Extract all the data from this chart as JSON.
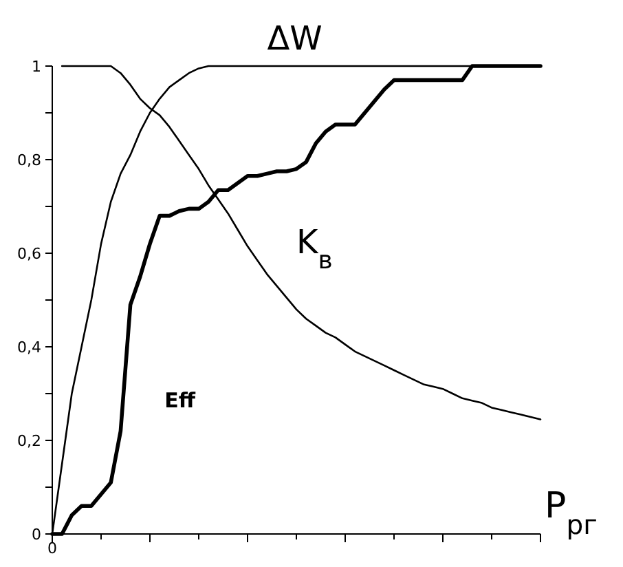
{
  "chart_data": {
    "type": "line",
    "xlabel": "P$_{рг}$",
    "categories": [
      "0",
      null,
      null,
      null,
      null,
      null,
      null,
      null,
      null,
      null,
      null,
      null,
      null,
      null,
      null,
      null,
      null,
      null,
      null,
      null,
      null,
      null,
      null,
      null,
      null,
      null,
      null,
      null,
      null,
      null,
      null,
      null,
      null,
      null,
      null,
      null,
      null,
      null,
      null,
      null,
      null,
      null,
      null,
      null,
      null,
      null,
      null,
      null,
      null,
      null,
      null
    ],
    "ylim": [
      0,
      1
    ],
    "yticks": [
      0,
      {
        "value": 0.1,
        "label": null
      },
      {
        "value": 0.2,
        "label": "0,2"
      },
      {
        "value": 0.3,
        "label": null
      },
      {
        "value": 0.4,
        "label": "0,4"
      },
      {
        "value": 0.5,
        "label": null
      },
      {
        "value": 0.6,
        "label": "0,6"
      },
      {
        "value": 0.7,
        "label": null
      },
      {
        "value": 0.8,
        "label": "0,8"
      },
      {
        "value": 0.9,
        "label": null
      },
      1
    ],
    "grid": false,
    "marker": "none",
    "line_style": "solid",
    "series": [
      {
        "name": "ΔW",
        "color": "#000000",
        "values": [
          0,
          0.15,
          0.3,
          0.4,
          0.5,
          0.62,
          0.71,
          0.77,
          0.81,
          0.86,
          0.9,
          0.93,
          0.955,
          0.97,
          0.985,
          0.995,
          1,
          1,
          1,
          1,
          1,
          1,
          1,
          1,
          1,
          1,
          1,
          1,
          1,
          1,
          1,
          1,
          1,
          1,
          1,
          1,
          1,
          1,
          1,
          1,
          1,
          1,
          1,
          1,
          1,
          1,
          1,
          1,
          1,
          1,
          1
        ]
      },
      {
        "name": "K$_{в}$",
        "color": "#000000",
        "values": [
          null,
          1,
          1,
          1,
          1,
          1,
          1,
          0.985,
          0.96,
          0.93,
          0.91,
          0.895,
          0.87,
          0.84,
          0.81,
          0.78,
          0.745,
          0.715,
          0.685,
          0.65,
          0.615,
          0.585,
          0.555,
          0.53,
          0.505,
          0.48,
          0.46,
          0.445,
          0.43,
          0.42,
          0.405,
          0.39,
          0.38,
          0.37,
          0.36,
          0.35,
          0.34,
          0.33,
          0.32,
          0.315,
          0.31,
          0.3,
          0.29,
          0.285,
          0.28,
          0.27,
          0.265,
          0.26,
          0.255,
          0.25,
          0.245
        ]
      },
      {
        "name": "Eff",
        "color": "#000000",
        "values": [
          0,
          0,
          0.04,
          0.06,
          0.06,
          0.085,
          0.11,
          0.22,
          0.49,
          0.55,
          0.62,
          0.68,
          0.68,
          0.69,
          0.695,
          0.695,
          0.71,
          0.735,
          0.735,
          0.75,
          0.765,
          0.765,
          0.77,
          0.775,
          0.775,
          0.78,
          0.795,
          0.835,
          0.86,
          0.875,
          0.875,
          0.875,
          0.9,
          0.925,
          0.95,
          0.97,
          0.97,
          0.97,
          0.97,
          0.97,
          0.97,
          0.97,
          0.97,
          1,
          1,
          1,
          1,
          1,
          1,
          1,
          1
        ]
      }
    ]
  }
}
